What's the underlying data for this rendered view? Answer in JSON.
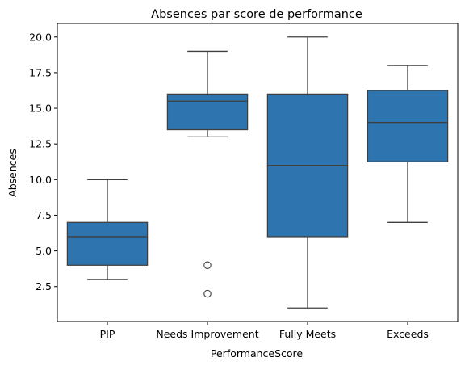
{
  "chart_data": {
    "type": "box",
    "title": "Absences par score de performance",
    "xlabel": "PerformanceScore",
    "ylabel": "Absences",
    "categories": [
      "PIP",
      "Needs Improvement",
      "Fully Meets",
      "Exceeds"
    ],
    "ylim": [
      0.05,
      20.95
    ],
    "yticks": [
      2.5,
      5.0,
      7.5,
      10.0,
      12.5,
      15.0,
      17.5,
      20.0
    ],
    "ytick_labels": [
      "2.5",
      "5.0",
      "7.5",
      "10.0",
      "12.5",
      "15.0",
      "17.5",
      "20.0"
    ],
    "grid": false,
    "boxes": [
      {
        "category": "PIP",
        "whisker_low": 3.0,
        "q1": 4.0,
        "median": 6.0,
        "q3": 7.0,
        "whisker_high": 10.0,
        "outliers": []
      },
      {
        "category": "Needs Improvement",
        "whisker_low": 13.0,
        "q1": 13.5,
        "median": 15.5,
        "q3": 16.0,
        "whisker_high": 19.0,
        "outliers": [
          4.0,
          2.0
        ]
      },
      {
        "category": "Fully Meets",
        "whisker_low": 1.0,
        "q1": 6.0,
        "median": 11.0,
        "q3": 16.0,
        "whisker_high": 20.0,
        "outliers": []
      },
      {
        "category": "Exceeds",
        "whisker_low": 7.0,
        "q1": 11.25,
        "median": 14.0,
        "q3": 16.25,
        "whisker_high": 18.0,
        "outliers": []
      }
    ],
    "colors": {
      "box_fill": "#2e75b0",
      "line": "#3f3f3f",
      "axis": "#000000"
    }
  }
}
